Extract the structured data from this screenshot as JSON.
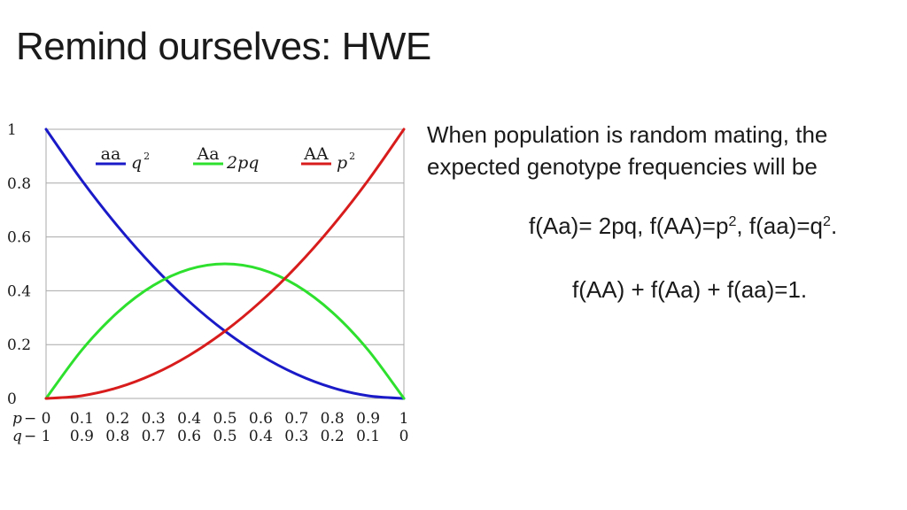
{
  "slide": {
    "title": "Remind ourselves: HWE",
    "description": "When population is random mating, the expected genotype frequencies will be",
    "formula1": {
      "aa_prefix": "f(Aa)= 2pq, f(AA)=p",
      "aa_exp": "2",
      "mid": ", f(aa)=q",
      "q_exp": "2",
      "end": "."
    },
    "formula2": "f(AA) + f(Aa) + f(aa)=1."
  },
  "chart_data": {
    "type": "line",
    "x": [
      0,
      0.1,
      0.2,
      0.3,
      0.4,
      0.5,
      0.6,
      0.7,
      0.8,
      0.9,
      1
    ],
    "xlabel_p": "p",
    "xlabel_q": "q",
    "dash": "−",
    "x_ticks_p": [
      "0",
      "0.1",
      "0.2",
      "0.3",
      "0.4",
      "0.5",
      "0.6",
      "0.7",
      "0.8",
      "0.9",
      "1"
    ],
    "x_ticks_q": [
      "1",
      "0.9",
      "0.8",
      "0.7",
      "0.6",
      "0.5",
      "0.4",
      "0.3",
      "0.2",
      "0.1",
      "0"
    ],
    "y_ticks": [
      "0",
      "0.2",
      "0.4",
      "0.6",
      "0.8",
      "1"
    ],
    "y_tick_values": [
      0,
      0.2,
      0.4,
      0.6,
      0.8,
      1
    ],
    "xlim": [
      0,
      1
    ],
    "ylim": [
      0,
      1
    ],
    "grid": "horizontal",
    "legend_position": "top",
    "series": [
      {
        "name": "aa",
        "formula": "q",
        "exp": "2",
        "color": "#1a1ac8",
        "values": [
          1,
          0.81,
          0.64,
          0.49,
          0.36,
          0.25,
          0.16,
          0.09,
          0.04,
          0.01,
          0
        ]
      },
      {
        "name": "Aa",
        "formula": "2pq",
        "exp": "",
        "color": "#2ee02e",
        "values": [
          0,
          0.18,
          0.32,
          0.42,
          0.48,
          0.5,
          0.48,
          0.42,
          0.32,
          0.18,
          0
        ]
      },
      {
        "name": "AA",
        "formula": "p",
        "exp": "2",
        "color": "#d81c1c",
        "values": [
          0,
          0.01,
          0.04,
          0.09,
          0.16,
          0.25,
          0.36,
          0.49,
          0.64,
          0.81,
          1
        ]
      }
    ]
  }
}
